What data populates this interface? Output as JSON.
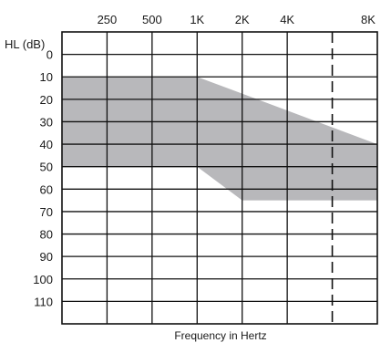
{
  "chart_data": {
    "type": "area",
    "title": "",
    "xlabel": "Frequency in Hertz",
    "ylabel": "HL (dB)",
    "x_ticks": [
      "250",
      "500",
      "1K",
      "2K",
      "4K",
      "8K"
    ],
    "y_ticks": [
      "0",
      "10",
      "20",
      "30",
      "40",
      "50",
      "60",
      "70",
      "80",
      "90",
      "100",
      "110"
    ],
    "ylim": [
      -10,
      120
    ],
    "y_inverted": true,
    "grid": true,
    "colors": {
      "band": "#b8b8bb",
      "grid": "#111111"
    },
    "series": [
      {
        "upper": [
          {
            "x": "125",
            "y": 10
          },
          {
            "x": "1K",
            "y": 10
          },
          {
            "x": "8K",
            "y": 40
          }
        ],
        "lower": [
          {
            "x": "125",
            "y": 50
          },
          {
            "x": "1K",
            "y": 50
          },
          {
            "x": "2K",
            "y": 65
          },
          {
            "x": "8K",
            "y": 65
          }
        ]
      }
    ]
  }
}
